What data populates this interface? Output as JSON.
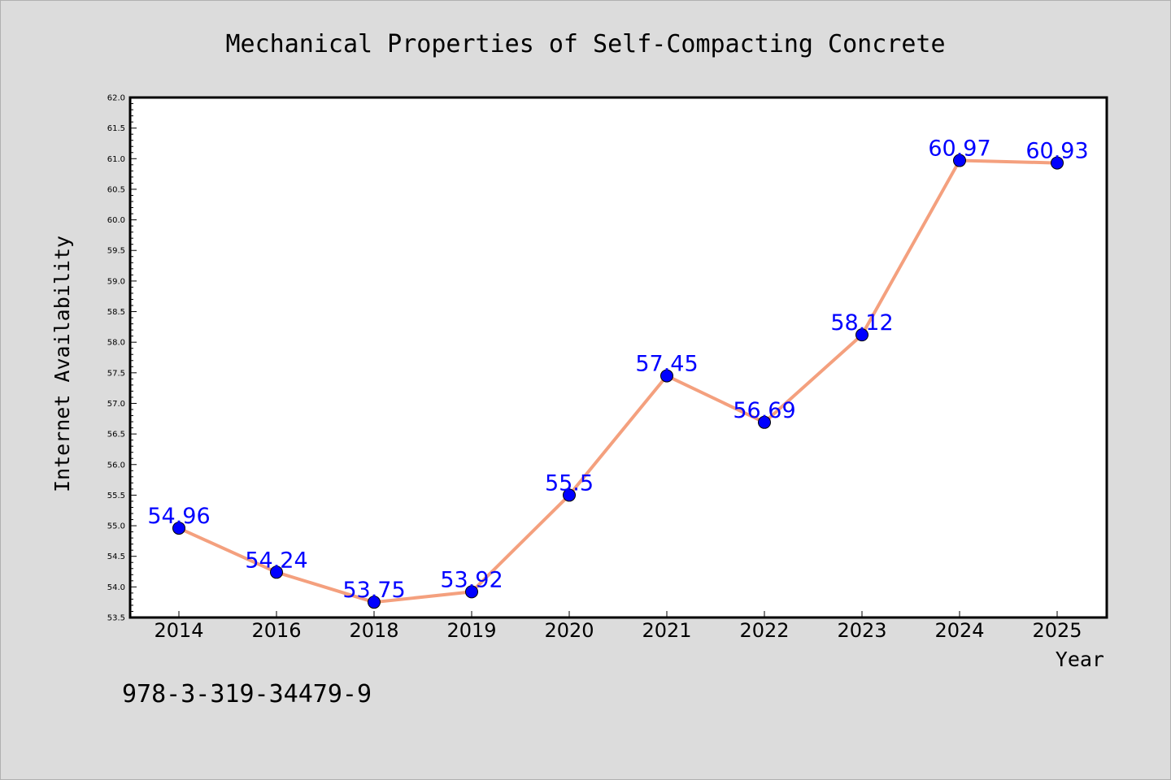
{
  "footer_code": "978-3-319-34479-9",
  "colors": {
    "background": "#dcdcdc",
    "plot_background": "#ffffff",
    "line": "#f4a07e",
    "marker": "#0000ff",
    "label": "#0000ff"
  },
  "chart_data": {
    "type": "line",
    "title": "Mechanical Properties of Self-Compacting Concrete",
    "xlabel": "Year",
    "ylabel": "Internet Availability",
    "categories": [
      "2014",
      "2016",
      "2018",
      "2019",
      "2020",
      "2021",
      "2022",
      "2023",
      "2024",
      "2025"
    ],
    "series": [
      {
        "values": [
          54.96,
          54.24,
          53.75,
          53.92,
          55.5,
          57.45,
          56.69,
          58.12,
          60.97,
          60.93
        ],
        "data_labels": [
          "54.96",
          "54.24",
          "53.75",
          "53.92",
          "55.5",
          "57.45",
          "56.69",
          "58.12",
          "60.97",
          "60.93"
        ]
      }
    ],
    "ylim": [
      53.5,
      62.0
    ],
    "yticks": [
      "53.5",
      "54.0",
      "54.5",
      "55.0",
      "55.5",
      "56.0",
      "56.5",
      "57.0",
      "57.5",
      "58.0",
      "58.5",
      "59.0",
      "59.5",
      "60.0",
      "60.5",
      "61.0",
      "61.5",
      "62.0"
    ],
    "grid": false,
    "legend": "none"
  }
}
